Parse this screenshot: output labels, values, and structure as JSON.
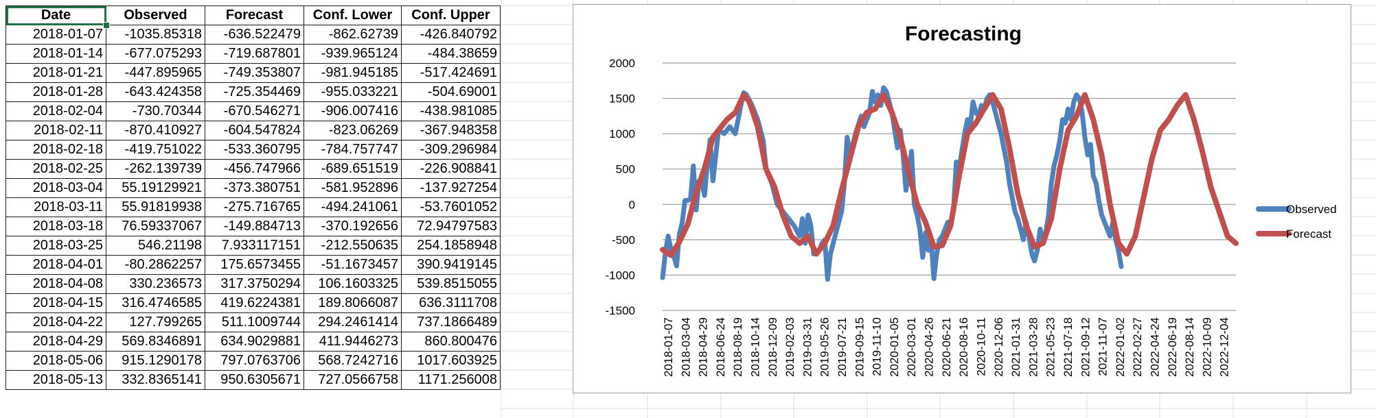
{
  "table": {
    "headers": [
      "Date",
      "Observed",
      "Forecast",
      "Conf. Lower",
      "Conf. Upper"
    ],
    "rows": [
      [
        "2018-01-07",
        "-1035.85318",
        "-636.522479",
        "-862.62739",
        "-426.840792"
      ],
      [
        "2018-01-14",
        "-677.075293",
        "-719.687801",
        "-939.965124",
        "-484.38659"
      ],
      [
        "2018-01-21",
        "-447.895965",
        "-749.353807",
        "-981.945185",
        "-517.424691"
      ],
      [
        "2018-01-28",
        "-643.424358",
        "-725.354469",
        "-955.033221",
        "-504.69001"
      ],
      [
        "2018-02-04",
        "-730.70344",
        "-670.546271",
        "-906.007416",
        "-438.981085"
      ],
      [
        "2018-02-11",
        "-870.410927",
        "-604.547824",
        "-823.06269",
        "-367.948358"
      ],
      [
        "2018-02-18",
        "-419.751022",
        "-533.360795",
        "-784.757747",
        "-309.296984"
      ],
      [
        "2018-02-25",
        "-262.139739",
        "-456.747966",
        "-689.651519",
        "-226.908841"
      ],
      [
        "2018-03-04",
        "55.19129921",
        "-373.380751",
        "-581.952896",
        "-137.927254"
      ],
      [
        "2018-03-11",
        "55.91819938",
        "-275.716765",
        "-494.241061",
        "-53.7601052"
      ],
      [
        "2018-03-18",
        "76.59337067",
        "-149.884713",
        "-370.192656",
        "72.94797583"
      ],
      [
        "2018-03-25",
        "546.21198",
        "7.933117151",
        "-212.550635",
        "254.1858948"
      ],
      [
        "2018-04-01",
        "-80.2862257",
        "175.6573455",
        "-51.1673457",
        "390.9419145"
      ],
      [
        "2018-04-08",
        "330.236573",
        "317.3750294",
        "106.1603325",
        "539.8515055"
      ],
      [
        "2018-04-15",
        "316.4746585",
        "419.6224381",
        "189.8066087",
        "636.3111708"
      ],
      [
        "2018-04-22",
        "127.799265",
        "511.1009744",
        "294.2461414",
        "737.1866489"
      ],
      [
        "2018-04-29",
        "569.8346891",
        "634.9029881",
        "411.9446273",
        "860.800476"
      ],
      [
        "2018-05-06",
        "915.1290178",
        "797.0763706",
        "568.7242716",
        "1017.603925"
      ],
      [
        "2018-05-13",
        "332.8365141",
        "950.6305671",
        "727.0566758",
        "1171.256008"
      ]
    ]
  },
  "chart_data": {
    "type": "line",
    "title": "Forecasting",
    "xlabel": "",
    "ylabel": "",
    "ylim": [
      -1500,
      2000
    ],
    "yticks": [
      2000,
      1500,
      1000,
      500,
      0,
      -500,
      -1000,
      -1500
    ],
    "grid": true,
    "legend": "right",
    "x_tick_labels": [
      "2018-01-07",
      "2018-03-04",
      "2018-04-29",
      "2018-06-24",
      "2018-08-19",
      "2018-10-14",
      "2018-12-09",
      "2019-02-03",
      "2019-03-31",
      "2019-05-26",
      "2019-07-21",
      "2019-09-15",
      "2019-11-10",
      "2020-01-05",
      "2020-03-01",
      "2020-04-26",
      "2020-06-21",
      "2020-08-16",
      "2020-10-11",
      "2020-12-06",
      "2021-01-31",
      "2021-03-28",
      "2021-05-23",
      "2021-07-18",
      "2021-09-12",
      "2021-11-07",
      "2022-01-02",
      "2022-02-27",
      "2022-04-24",
      "2022-06-19",
      "2022-08-14",
      "2022-10-09",
      "2022-12-04"
    ],
    "series": [
      {
        "name": "Observed",
        "color": "#4f81bd",
        "points": [
          [
            0,
            -1036
          ],
          [
            1,
            -677
          ],
          [
            2,
            -448
          ],
          [
            3,
            -643
          ],
          [
            4,
            -731
          ],
          [
            5,
            -870
          ],
          [
            6,
            -420
          ],
          [
            7,
            -262
          ],
          [
            8,
            55
          ],
          [
            9,
            56
          ],
          [
            10,
            77
          ],
          [
            11,
            546
          ],
          [
            12,
            -80
          ],
          [
            13,
            330
          ],
          [
            14,
            316
          ],
          [
            15,
            128
          ],
          [
            16,
            570
          ],
          [
            17,
            915
          ],
          [
            18,
            333
          ],
          [
            20,
            1050
          ],
          [
            22,
            1000
          ],
          [
            24,
            1100
          ],
          [
            26,
            1000
          ],
          [
            28,
            1400
          ],
          [
            29,
            1580
          ],
          [
            30,
            1550
          ],
          [
            32,
            1400
          ],
          [
            34,
            1200
          ],
          [
            36,
            900
          ],
          [
            37,
            500
          ],
          [
            39,
            300
          ],
          [
            41,
            0
          ],
          [
            43,
            -100
          ],
          [
            45,
            -200
          ],
          [
            47,
            -300
          ],
          [
            49,
            -450
          ],
          [
            50,
            -200
          ],
          [
            51,
            -550
          ],
          [
            52,
            -150
          ],
          [
            53,
            -300
          ],
          [
            54,
            -700
          ],
          [
            56,
            -650
          ],
          [
            57,
            -550
          ],
          [
            58,
            -500
          ],
          [
            59,
            -1060
          ],
          [
            60,
            -700
          ],
          [
            62,
            -400
          ],
          [
            64,
            -100
          ],
          [
            65,
            300
          ],
          [
            66,
            950
          ],
          [
            67,
            700
          ],
          [
            69,
            1000
          ],
          [
            71,
            1250
          ],
          [
            72,
            1100
          ],
          [
            74,
            1300
          ],
          [
            75,
            1600
          ],
          [
            76,
            1450
          ],
          [
            77,
            1550
          ],
          [
            78,
            1400
          ],
          [
            79,
            1650
          ],
          [
            80,
            1600
          ],
          [
            82,
            1300
          ],
          [
            84,
            800
          ],
          [
            85,
            1050
          ],
          [
            86,
            700
          ],
          [
            87,
            200
          ],
          [
            88,
            450
          ],
          [
            89,
            750
          ],
          [
            90,
            0
          ],
          [
            91,
            -150
          ],
          [
            92,
            -350
          ],
          [
            93,
            -750
          ],
          [
            94,
            -400
          ],
          [
            95,
            -650
          ],
          [
            96,
            -500
          ],
          [
            97,
            -1050
          ],
          [
            98,
            -700
          ],
          [
            99,
            -500
          ],
          [
            100,
            -450
          ],
          [
            101,
            -350
          ],
          [
            102,
            -250
          ],
          [
            103,
            -300
          ],
          [
            104,
            -100
          ],
          [
            105,
            600
          ],
          [
            106,
            500
          ],
          [
            107,
            750
          ],
          [
            108,
            1000
          ],
          [
            109,
            1200
          ],
          [
            110,
            1100
          ],
          [
            111,
            1450
          ],
          [
            112,
            1300
          ],
          [
            113,
            1250
          ],
          [
            114,
            1400
          ],
          [
            115,
            1350
          ],
          [
            116,
            1500
          ],
          [
            117,
            1550
          ],
          [
            118,
            1450
          ],
          [
            119,
            1300
          ],
          [
            120,
            1150
          ],
          [
            121,
            1000
          ],
          [
            122,
            800
          ],
          [
            123,
            600
          ],
          [
            124,
            300
          ],
          [
            125,
            100
          ],
          [
            126,
            -100
          ],
          [
            127,
            -200
          ],
          [
            128,
            -350
          ],
          [
            129,
            -500
          ],
          [
            130,
            -250
          ],
          [
            131,
            -450
          ],
          [
            132,
            -700
          ],
          [
            133,
            -800
          ],
          [
            134,
            -650
          ],
          [
            135,
            -350
          ],
          [
            136,
            -500
          ],
          [
            137,
            -400
          ],
          [
            138,
            -150
          ],
          [
            139,
            300
          ],
          [
            140,
            550
          ],
          [
            141,
            700
          ],
          [
            142,
            900
          ],
          [
            143,
            1200
          ],
          [
            144,
            1150
          ],
          [
            145,
            1350
          ],
          [
            146,
            1200
          ],
          [
            147,
            1450
          ],
          [
            148,
            1550
          ],
          [
            149,
            1500
          ],
          [
            150,
            1300
          ],
          [
            151,
            950
          ],
          [
            152,
            700
          ],
          [
            153,
            850
          ],
          [
            154,
            400
          ],
          [
            155,
            300
          ],
          [
            156,
            50
          ],
          [
            157,
            -150
          ],
          [
            158,
            -250
          ],
          [
            159,
            -350
          ],
          [
            160,
            -450
          ],
          [
            161,
            -250
          ],
          [
            162,
            -500
          ],
          [
            163,
            -650
          ],
          [
            164,
            -880
          ]
        ]
      },
      {
        "name": "Forecast",
        "color": "#c0504d",
        "points": [
          [
            0,
            -640
          ],
          [
            3,
            -720
          ],
          [
            6,
            -530
          ],
          [
            9,
            -280
          ],
          [
            12,
            170
          ],
          [
            15,
            510
          ],
          [
            18,
            950
          ],
          [
            20,
            1050
          ],
          [
            23,
            1200
          ],
          [
            26,
            1300
          ],
          [
            29,
            1550
          ],
          [
            31,
            1450
          ],
          [
            34,
            1100
          ],
          [
            37,
            500
          ],
          [
            40,
            250
          ],
          [
            43,
            -150
          ],
          [
            46,
            -450
          ],
          [
            49,
            -550
          ],
          [
            52,
            -450
          ],
          [
            55,
            -700
          ],
          [
            58,
            -550
          ],
          [
            61,
            -300
          ],
          [
            64,
            200
          ],
          [
            67,
            650
          ],
          [
            70,
            1100
          ],
          [
            73,
            1300
          ],
          [
            76,
            1350
          ],
          [
            79,
            1550
          ],
          [
            82,
            1300
          ],
          [
            85,
            950
          ],
          [
            88,
            450
          ],
          [
            91,
            0
          ],
          [
            94,
            -250
          ],
          [
            97,
            -600
          ],
          [
            100,
            -580
          ],
          [
            103,
            -300
          ],
          [
            106,
            400
          ],
          [
            109,
            1000
          ],
          [
            112,
            1150
          ],
          [
            115,
            1350
          ],
          [
            118,
            1550
          ],
          [
            121,
            1350
          ],
          [
            124,
            800
          ],
          [
            127,
            150
          ],
          [
            130,
            -300
          ],
          [
            133,
            -600
          ],
          [
            136,
            -550
          ],
          [
            139,
            -200
          ],
          [
            142,
            500
          ],
          [
            145,
            1050
          ],
          [
            148,
            1250
          ],
          [
            151,
            1550
          ],
          [
            154,
            1200
          ],
          [
            157,
            700
          ],
          [
            160,
            0
          ],
          [
            163,
            -550
          ],
          [
            166,
            -700
          ],
          [
            169,
            -450
          ],
          [
            172,
            100
          ],
          [
            175,
            650
          ],
          [
            178,
            1050
          ],
          [
            181,
            1200
          ],
          [
            184,
            1400
          ],
          [
            187,
            1550
          ],
          [
            190,
            1200
          ],
          [
            193,
            750
          ],
          [
            196,
            250
          ],
          [
            199,
            -100
          ],
          [
            202,
            -450
          ],
          [
            205,
            -550
          ]
        ]
      }
    ]
  }
}
